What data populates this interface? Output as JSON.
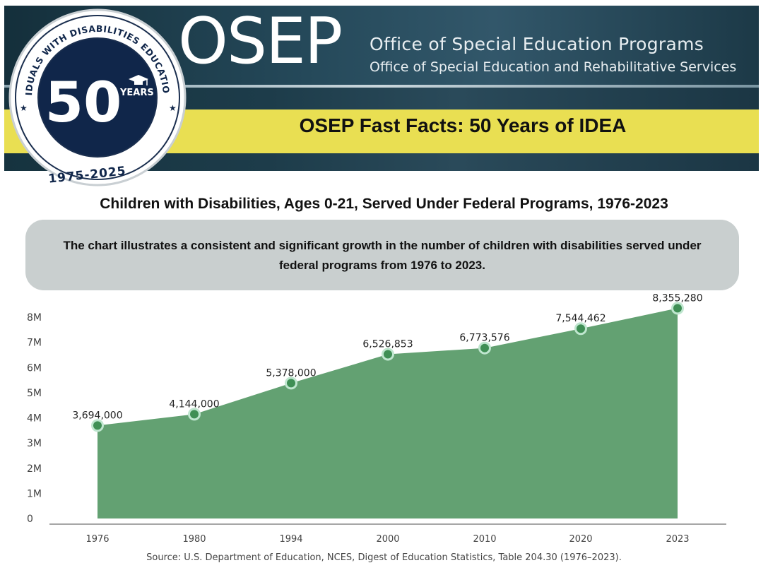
{
  "header": {
    "acronym": "OSEP",
    "office_line_1": "Office of Special Education Programs",
    "office_line_2": "Office of Special Education and Rehabilitative Services",
    "fast_facts": "OSEP Fast Facts:  50 Years of IDEA"
  },
  "seal": {
    "ring_text": "INDIVIDUALS WITH DISABILITIES EDUCATION ACT",
    "number": "50",
    "years": "YEARS",
    "dates": "1975-2025"
  },
  "summary": {
    "text": "The chart illustrates a consistent and significant growth in the number of children with disabilities served under federal programs from 1976 to 2023."
  },
  "source": "Source: U.S. Department of Education, NCES, Digest of Education Statistics, Table 204.30 (1976–2023).",
  "colors": {
    "area": "#63a172",
    "point_fill": "#3f8f55",
    "point_stroke": "#bfe6cf",
    "banner_yellow": "#e9df52",
    "banner_dark": "#1d3c4a"
  },
  "chart_data": {
    "type": "area",
    "title": "Children with Disabilities, Ages 0-21, Served Under Federal Programs, 1976-2023",
    "categories": [
      "1976",
      "1980",
      "1994",
      "2000",
      "2010",
      "2020",
      "2023"
    ],
    "values": [
      3694000,
      4144000,
      5378000,
      6526853,
      6773576,
      7544462,
      8355280
    ],
    "data_labels": [
      "3,694,000",
      "4,144,000",
      "5,378,000",
      "6,526,853",
      "6,773,576",
      "7,544,462",
      "8,355,280"
    ],
    "yticks": [
      0,
      1000000,
      2000000,
      3000000,
      4000000,
      5000000,
      6000000,
      7000000,
      8000000
    ],
    "ytick_labels": [
      "0",
      "1M",
      "2M",
      "3M",
      "4M",
      "5M",
      "6M",
      "7M",
      "8M"
    ],
    "ylim": [
      0,
      8000000
    ],
    "grid": false,
    "xlabel": "",
    "ylabel": ""
  }
}
